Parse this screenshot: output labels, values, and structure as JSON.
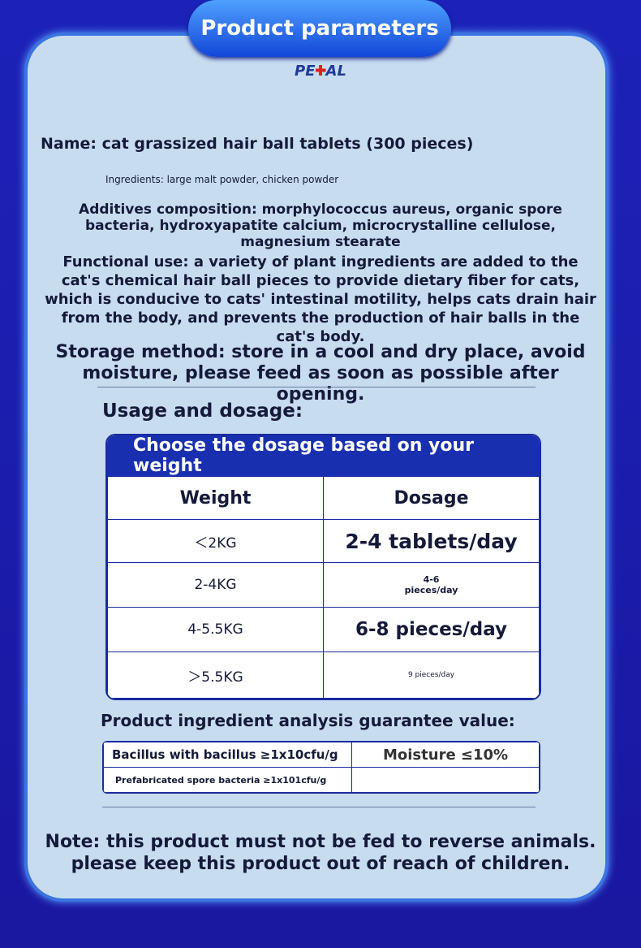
{
  "header": {
    "title": "Product parameters",
    "brand_left": "PE",
    "brand_right": "AL"
  },
  "name": "Name: cat grassized hair ball tablets (300 pieces)",
  "ingredients": "Ingredients: large malt powder, chicken powder",
  "additives": "Additives composition: morphylococcus aureus, organic spore bacteria, hydroxyapatite calcium, microcrystalline cellulose, magnesium stearate",
  "functional_use": "Functional use: a variety of plant ingredients are added to the cat's chemical hair ball pieces to provide dietary fiber for cats, which is conducive to cats' intestinal motility, helps cats drain hair from the body, and prevents the production of hair balls in the cat's body.",
  "storage": "Storage method: store in a cool and dry place, avoid moisture, please feed as soon as possible after opening.",
  "usage_title": "Usage and dosage:",
  "dosage_table": {
    "title": "Choose the dosage based on your weight",
    "header": [
      "Weight",
      "Dosage"
    ],
    "rows": [
      [
        "＜2KG",
        "2-4 tablets/day"
      ],
      [
        "2-4KG",
        "4-6 pieces/day"
      ],
      [
        "4-5.5KG",
        "6-8 pieces/day"
      ],
      [
        "＞5.5KG",
        "9 pieces/day"
      ]
    ]
  },
  "analysis": {
    "title": "Product ingredient analysis guarantee value:",
    "rows": [
      [
        "Bacillus with bacillus ≥1x10cfu/g",
        "Moisture ≤10%"
      ],
      [
        "Prefabricated spore bacteria ≥1x101cfu/g"
      ]
    ]
  },
  "note": [
    "Note: this product must not be fed to reverse animals.",
    "please keep this product out of reach of children."
  ]
}
